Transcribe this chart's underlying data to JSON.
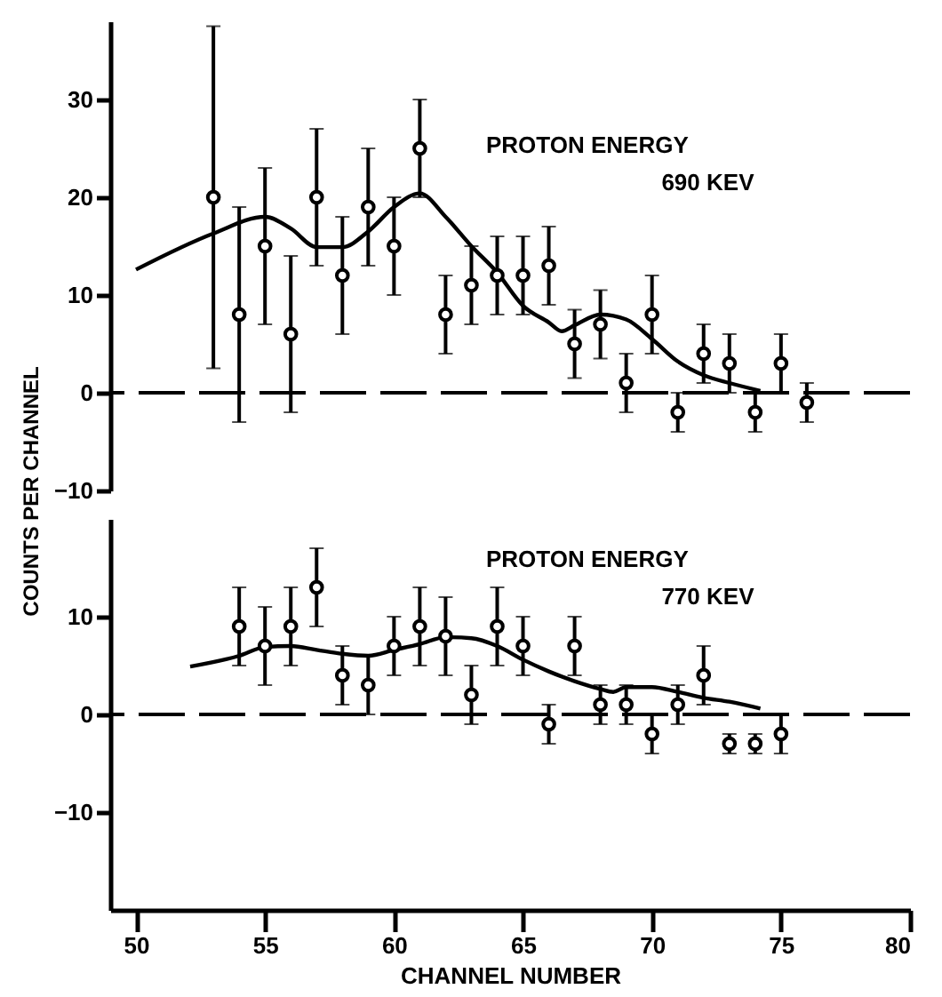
{
  "chart_data": [
    {
      "type": "scatter",
      "ylabel": "COUNTS PER CHANNEL",
      "annotations": [
        "PROTON ENERGY",
        "690 KEV"
      ],
      "xlim": [
        49,
        80
      ],
      "ylim": [
        -10,
        38
      ],
      "yticks": [
        -10,
        0,
        10,
        20,
        30
      ],
      "tick_labels": "y",
      "grid": false,
      "ref_lines": [
        {
          "axis": "y",
          "value": 0,
          "line_style": "dashed",
          "color": "#000000"
        }
      ],
      "series": [
        {
          "marker": "circle",
          "color": "#000000",
          "x": [
            53,
            54,
            55,
            56,
            57,
            58,
            59,
            60,
            61,
            62,
            63,
            64,
            65,
            66,
            67,
            68,
            69,
            70,
            71,
            72,
            73,
            74,
            75,
            76
          ],
          "values": [
            20,
            8,
            15,
            6,
            20,
            12,
            19,
            15,
            25,
            8,
            11,
            12,
            12,
            13,
            5,
            7,
            1,
            8,
            -2,
            4,
            3,
            -2,
            3,
            -1
          ],
          "errors": [
            17.5,
            11,
            8,
            8,
            7,
            6,
            6,
            5,
            5,
            4,
            4,
            4,
            4,
            4,
            3.5,
            3.5,
            3,
            4,
            2,
            3,
            3,
            2,
            3,
            2
          ]
        },
        {
          "type": "line",
          "color": "#000000",
          "line_style": "solid",
          "x": [
            50,
            53,
            55,
            56,
            57,
            58,
            59,
            60,
            61,
            62,
            63,
            64,
            65,
            66,
            66.5,
            67,
            68,
            69,
            70,
            71,
            72,
            73,
            74.2
          ],
          "values": [
            12.6,
            16.3,
            18,
            16.8,
            14.9,
            14.9,
            16.5,
            19,
            20.4,
            18,
            15,
            12.3,
            8.9,
            7.2,
            6.3,
            6.9,
            8,
            7.5,
            5.5,
            3.2,
            1.8,
            1,
            0.2
          ]
        }
      ]
    },
    {
      "type": "scatter",
      "xlabel": "CHANNEL NUMBER",
      "annotations": [
        "PROTON ENERGY",
        "770 KEV"
      ],
      "xlim": [
        49,
        80
      ],
      "xticks": [
        50,
        55,
        60,
        65,
        70,
        75,
        80
      ],
      "ylim": [
        -20,
        20
      ],
      "yticks": [
        -10,
        0,
        10
      ],
      "grid": false,
      "ref_lines": [
        {
          "axis": "y",
          "value": 0,
          "line_style": "dashed",
          "color": "#000000"
        }
      ],
      "series": [
        {
          "marker": "circle",
          "color": "#000000",
          "x": [
            54,
            55,
            56,
            57,
            58,
            59,
            60,
            61,
            62,
            63,
            64,
            65,
            66,
            67,
            68,
            69,
            70,
            71,
            72,
            73,
            74,
            75
          ],
          "values": [
            9,
            7,
            9,
            13,
            4,
            3,
            7,
            9,
            8,
            2,
            9,
            7,
            -1,
            7,
            1,
            1,
            -2,
            1,
            4,
            -3,
            -3,
            -2
          ],
          "errors": [
            4,
            4,
            4,
            4,
            3,
            3,
            3,
            4,
            4,
            3,
            4,
            3,
            2,
            3,
            2,
            2,
            2,
            2,
            3,
            1,
            1,
            2
          ]
        },
        {
          "type": "line",
          "color": "#000000",
          "line_style": "solid",
          "x": [
            52.1,
            54,
            55,
            56,
            57,
            58,
            59,
            60,
            61,
            62,
            63,
            64,
            65,
            66,
            67,
            68,
            68.5,
            69,
            70,
            71,
            72,
            73,
            74.2
          ],
          "values": [
            4.9,
            6,
            6.9,
            7,
            6.6,
            6.2,
            6,
            6.6,
            7.2,
            7.9,
            7.8,
            7,
            5.6,
            4.4,
            3.4,
            2.6,
            2.3,
            2.8,
            2.8,
            2.3,
            1.7,
            1.3,
            0.6
          ]
        }
      ]
    }
  ]
}
